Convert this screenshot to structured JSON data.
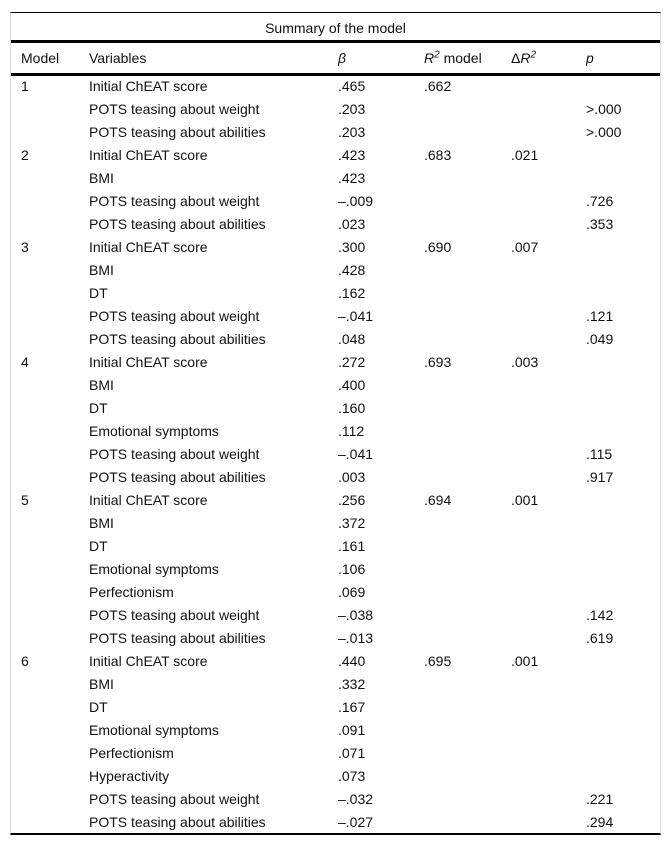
{
  "page": {
    "background": "#ffffff",
    "text_color": "#111111"
  },
  "table": {
    "title": "Summary of the model",
    "rule_color": "#000000",
    "side_border_color": "#dcdcdc",
    "columns": [
      {
        "key": "model",
        "parts": [
          {
            "text": "Model"
          }
        ]
      },
      {
        "key": "variable",
        "parts": [
          {
            "text": "Variables"
          }
        ]
      },
      {
        "key": "beta",
        "parts": [
          {
            "text": "β",
            "style": "italic"
          }
        ]
      },
      {
        "key": "r2",
        "parts": [
          {
            "text": "R",
            "style": "italic"
          },
          {
            "text": "2",
            "style": "sup"
          },
          {
            "text": " model"
          }
        ]
      },
      {
        "key": "dr2",
        "parts": [
          {
            "text": "Δ"
          },
          {
            "text": "R",
            "style": "italic"
          },
          {
            "text": "2",
            "style": "sup"
          }
        ]
      },
      {
        "key": "p",
        "parts": [
          {
            "text": "p",
            "style": "italic"
          }
        ]
      }
    ],
    "rows": [
      {
        "model": "1",
        "variable": "Initial ChEAT score",
        "beta": ".465",
        "r2": ".662",
        "dr2": "",
        "p": ""
      },
      {
        "model": "",
        "variable": "POTS teasing about weight",
        "beta": ".203",
        "r2": "",
        "dr2": "",
        "p": ">.000"
      },
      {
        "model": "",
        "variable": "POTS teasing about abilities",
        "beta": ".203",
        "r2": "",
        "dr2": "",
        "p": ">.000"
      },
      {
        "model": "2",
        "variable": "Initial ChEAT score",
        "beta": ".423",
        "r2": ".683",
        "dr2": ".021",
        "p": ""
      },
      {
        "model": "",
        "variable": "BMI",
        "beta": ".423",
        "r2": "",
        "dr2": "",
        "p": ""
      },
      {
        "model": "",
        "variable": "POTS teasing about weight",
        "beta": "–.009",
        "r2": "",
        "dr2": "",
        "p": ".726"
      },
      {
        "model": "",
        "variable": "POTS teasing about abilities",
        "beta": ".023",
        "r2": "",
        "dr2": "",
        "p": ".353"
      },
      {
        "model": "3",
        "variable": "Initial ChEAT score",
        "beta": ".300",
        "r2": ".690",
        "dr2": ".007",
        "p": ""
      },
      {
        "model": "",
        "variable": "BMI",
        "beta": ".428",
        "r2": "",
        "dr2": "",
        "p": ""
      },
      {
        "model": "",
        "variable": "DT",
        "beta": ".162",
        "r2": "",
        "dr2": "",
        "p": ""
      },
      {
        "model": "",
        "variable": "POTS teasing about weight",
        "beta": "–.041",
        "r2": "",
        "dr2": "",
        "p": ".121"
      },
      {
        "model": "",
        "variable": "POTS teasing about abilities",
        "beta": ".048",
        "r2": "",
        "dr2": "",
        "p": ".049"
      },
      {
        "model": "4",
        "variable": "Initial ChEAT score",
        "beta": ".272",
        "r2": ".693",
        "dr2": ".003",
        "p": ""
      },
      {
        "model": "",
        "variable": "BMI",
        "beta": ".400",
        "r2": "",
        "dr2": "",
        "p": ""
      },
      {
        "model": "",
        "variable": "DT",
        "beta": ".160",
        "r2": "",
        "dr2": "",
        "p": ""
      },
      {
        "model": "",
        "variable": "Emotional symptoms",
        "beta": ".112",
        "r2": "",
        "dr2": "",
        "p": ""
      },
      {
        "model": "",
        "variable": "POTS teasing about weight",
        "beta": "–.041",
        "r2": "",
        "dr2": "",
        "p": ".115"
      },
      {
        "model": "",
        "variable": "POTS teasing about abilities",
        "beta": ".003",
        "r2": "",
        "dr2": "",
        "p": ".917"
      },
      {
        "model": "5",
        "variable": "Initial ChEAT score",
        "beta": ".256",
        "r2": ".694",
        "dr2": ".001",
        "p": ""
      },
      {
        "model": "",
        "variable": "BMI",
        "beta": ".372",
        "r2": "",
        "dr2": "",
        "p": ""
      },
      {
        "model": "",
        "variable": "DT",
        "beta": ".161",
        "r2": "",
        "dr2": "",
        "p": ""
      },
      {
        "model": "",
        "variable": "Emotional symptoms",
        "beta": ".106",
        "r2": "",
        "dr2": "",
        "p": ""
      },
      {
        "model": "",
        "variable": "Perfectionism",
        "beta": ".069",
        "r2": "",
        "dr2": "",
        "p": ""
      },
      {
        "model": "",
        "variable": "POTS teasing about weight",
        "beta": "–.038",
        "r2": "",
        "dr2": "",
        "p": ".142"
      },
      {
        "model": "",
        "variable": "POTS teasing about abilities",
        "beta": "–.013",
        "r2": "",
        "dr2": "",
        "p": ".619"
      },
      {
        "model": "6",
        "variable": "Initial ChEAT score",
        "beta": ".440",
        "r2": ".695",
        "dr2": ".001",
        "p": ""
      },
      {
        "model": "",
        "variable": "BMI",
        "beta": ".332",
        "r2": "",
        "dr2": "",
        "p": ""
      },
      {
        "model": "",
        "variable": "DT",
        "beta": ".167",
        "r2": "",
        "dr2": "",
        "p": ""
      },
      {
        "model": "",
        "variable": "Emotional symptoms",
        "beta": ".091",
        "r2": "",
        "dr2": "",
        "p": ""
      },
      {
        "model": "",
        "variable": "Perfectionism",
        "beta": ".071",
        "r2": "",
        "dr2": "",
        "p": ""
      },
      {
        "model": "",
        "variable": "Hyperactivity",
        "beta": ".073",
        "r2": "",
        "dr2": "",
        "p": ""
      },
      {
        "model": "",
        "variable": "POTS teasing about weight",
        "beta": "–.032",
        "r2": "",
        "dr2": "",
        "p": ".221"
      },
      {
        "model": "",
        "variable": "POTS teasing about abilities",
        "beta": "–.027",
        "r2": "",
        "dr2": "",
        "p": ".294"
      }
    ]
  }
}
